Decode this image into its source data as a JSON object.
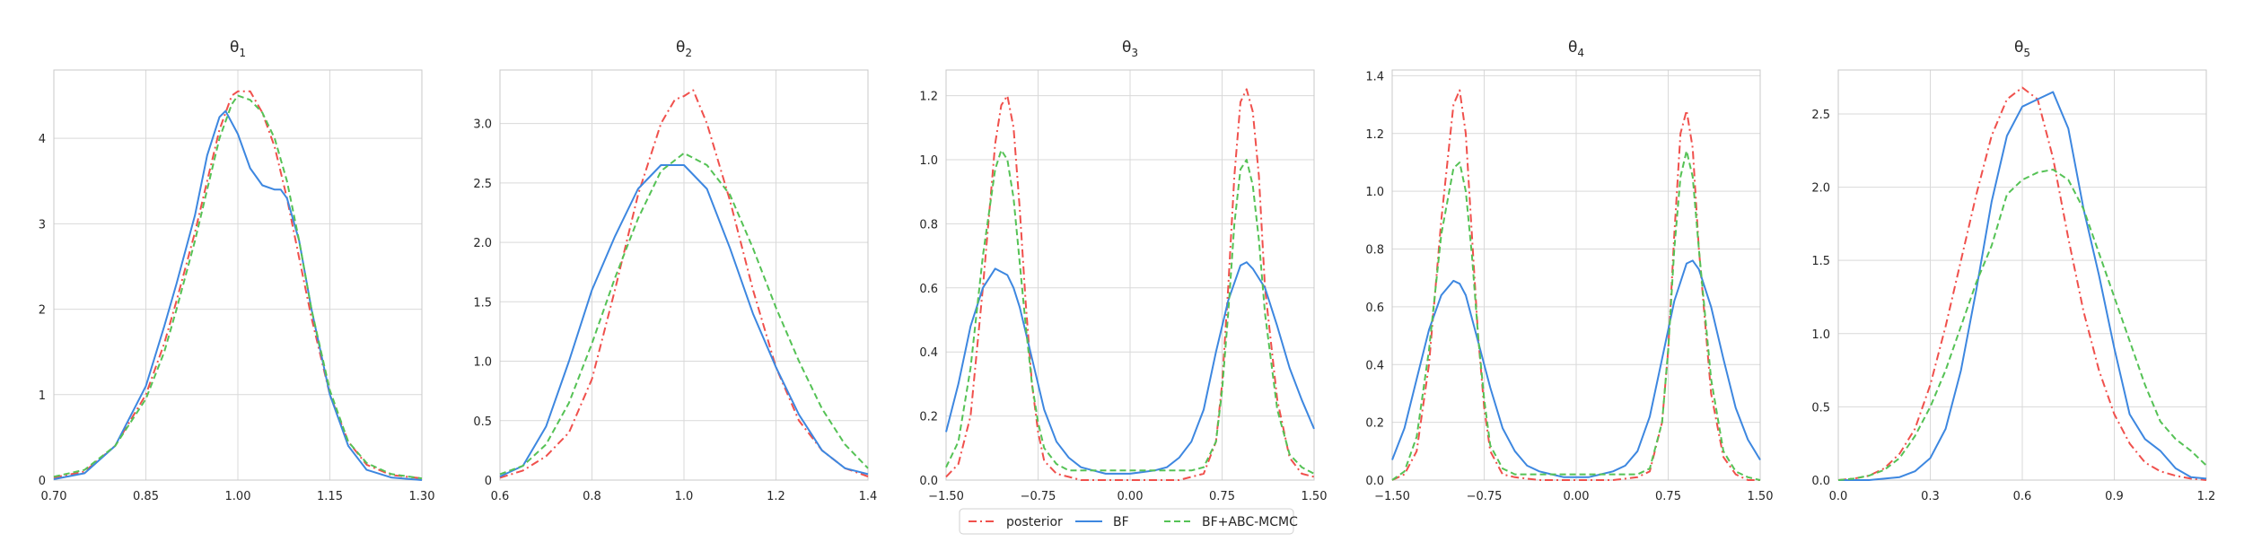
{
  "legend": [
    {
      "label": "posterior",
      "color": "#f0504c",
      "dash": "dashdot"
    },
    {
      "label": "BF",
      "color": "#3d87e0",
      "dash": "solid"
    },
    {
      "label": "BF+ABC-MCMC",
      "color": "#55c255",
      "dash": "dashed"
    }
  ],
  "chart_data": [
    {
      "type": "line",
      "title_base": "θ",
      "title_sub": "1",
      "xlim": [
        0.7,
        1.3
      ],
      "ylim": [
        0,
        4.8
      ],
      "xticks": [
        0.7,
        0.85,
        1.0,
        1.15,
        1.3
      ],
      "xtick_labels": [
        "0.70",
        "0.85",
        "1.00",
        "1.15",
        "1.30"
      ],
      "yticks": [
        0,
        1,
        2,
        3,
        4
      ],
      "ytick_labels": [
        "0",
        "1",
        "2",
        "3",
        "4"
      ],
      "series": [
        {
          "name": "posterior",
          "x": [
            0.7,
            0.75,
            0.8,
            0.85,
            0.88,
            0.9,
            0.93,
            0.95,
            0.97,
            0.99,
            1.0,
            1.02,
            1.04,
            1.06,
            1.08,
            1.1,
            1.12,
            1.15,
            1.18,
            1.21,
            1.25,
            1.3
          ],
          "y": [
            0.03,
            0.1,
            0.4,
            1.0,
            1.6,
            2.1,
            2.9,
            3.5,
            4.1,
            4.5,
            4.55,
            4.55,
            4.3,
            3.9,
            3.3,
            2.6,
            1.9,
            1.0,
            0.45,
            0.18,
            0.06,
            0.02
          ]
        },
        {
          "name": "BF",
          "x": [
            0.7,
            0.75,
            0.8,
            0.85,
            0.88,
            0.9,
            0.93,
            0.95,
            0.97,
            0.98,
            1.0,
            1.02,
            1.04,
            1.06,
            1.07,
            1.08,
            1.1,
            1.12,
            1.15,
            1.18,
            1.21,
            1.25,
            1.3
          ],
          "y": [
            0.01,
            0.08,
            0.4,
            1.1,
            1.8,
            2.3,
            3.1,
            3.8,
            4.25,
            4.32,
            4.05,
            3.65,
            3.45,
            3.4,
            3.4,
            3.3,
            2.8,
            2.0,
            1.0,
            0.4,
            0.12,
            0.03,
            0.0
          ]
        },
        {
          "name": "BF+ABC-MCMC",
          "x": [
            0.7,
            0.75,
            0.8,
            0.85,
            0.88,
            0.9,
            0.93,
            0.95,
            0.97,
            0.99,
            1.0,
            1.02,
            1.04,
            1.06,
            1.08,
            1.1,
            1.12,
            1.15,
            1.18,
            1.21,
            1.25,
            1.3
          ],
          "y": [
            0.04,
            0.12,
            0.4,
            0.95,
            1.5,
            2.0,
            2.8,
            3.4,
            4.0,
            4.4,
            4.5,
            4.45,
            4.3,
            4.0,
            3.5,
            2.8,
            2.0,
            1.05,
            0.45,
            0.2,
            0.07,
            0.02
          ]
        }
      ]
    },
    {
      "type": "line",
      "title_base": "θ",
      "title_sub": "2",
      "xlim": [
        0.6,
        1.4
      ],
      "ylim": [
        0,
        3.45
      ],
      "xticks": [
        0.6,
        0.8,
        1.0,
        1.2,
        1.4
      ],
      "xtick_labels": [
        "0.6",
        "0.8",
        "1.0",
        "1.2",
        "1.4"
      ],
      "yticks": [
        0,
        0.5,
        1.0,
        1.5,
        2.0,
        2.5,
        3.0
      ],
      "ytick_labels": [
        "0",
        "0.5",
        "1.0",
        "1.5",
        "2.0",
        "2.5",
        "3.0"
      ],
      "series": [
        {
          "name": "posterior",
          "x": [
            0.6,
            0.65,
            0.7,
            0.75,
            0.8,
            0.85,
            0.9,
            0.95,
            0.98,
            1.0,
            1.02,
            1.05,
            1.1,
            1.15,
            1.2,
            1.25,
            1.3,
            1.35,
            1.4
          ],
          "y": [
            0.02,
            0.08,
            0.2,
            0.4,
            0.85,
            1.6,
            2.4,
            3.0,
            3.2,
            3.23,
            3.28,
            3.0,
            2.35,
            1.6,
            0.95,
            0.5,
            0.25,
            0.1,
            0.03
          ]
        },
        {
          "name": "BF",
          "x": [
            0.6,
            0.65,
            0.7,
            0.75,
            0.8,
            0.85,
            0.9,
            0.95,
            1.0,
            1.05,
            1.1,
            1.15,
            1.2,
            1.25,
            1.3,
            1.35,
            1.4
          ],
          "y": [
            0.03,
            0.12,
            0.45,
            1.0,
            1.6,
            2.05,
            2.45,
            2.65,
            2.65,
            2.45,
            1.95,
            1.4,
            0.95,
            0.55,
            0.25,
            0.1,
            0.05
          ]
        },
        {
          "name": "BF+ABC-MCMC",
          "x": [
            0.6,
            0.65,
            0.7,
            0.75,
            0.8,
            0.85,
            0.9,
            0.95,
            1.0,
            1.05,
            1.1,
            1.15,
            1.2,
            1.25,
            1.3,
            1.35,
            1.4
          ],
          "y": [
            0.05,
            0.12,
            0.3,
            0.65,
            1.15,
            1.7,
            2.2,
            2.6,
            2.75,
            2.65,
            2.4,
            1.95,
            1.45,
            1.0,
            0.6,
            0.3,
            0.1
          ]
        }
      ]
    },
    {
      "type": "line",
      "title_base": "θ",
      "title_sub": "3",
      "xlim": [
        -1.5,
        1.5
      ],
      "ylim": [
        0,
        1.28
      ],
      "xticks": [
        -1.5,
        -0.75,
        0.0,
        0.75,
        1.5
      ],
      "xtick_labels": [
        "−1.50",
        "−0.75",
        "0.00",
        "0.75",
        "1.50"
      ],
      "yticks": [
        0,
        0.2,
        0.4,
        0.6,
        0.8,
        1.0,
        1.2
      ],
      "ytick_labels": [
        "0.0",
        "0.2",
        "0.4",
        "0.6",
        "0.8",
        "1.0",
        "1.2"
      ],
      "series": [
        {
          "name": "posterior",
          "x": [
            -1.5,
            -1.4,
            -1.3,
            -1.2,
            -1.1,
            -1.05,
            -1.0,
            -0.95,
            -0.9,
            -0.85,
            -0.8,
            -0.75,
            -0.7,
            -0.6,
            -0.5,
            -0.4,
            -0.2,
            0.0,
            0.2,
            0.4,
            0.5,
            0.6,
            0.7,
            0.75,
            0.8,
            0.85,
            0.9,
            0.95,
            1.0,
            1.05,
            1.1,
            1.2,
            1.3,
            1.4,
            1.5
          ],
          "y": [
            0.01,
            0.05,
            0.2,
            0.6,
            1.05,
            1.17,
            1.2,
            1.1,
            0.85,
            0.55,
            0.3,
            0.15,
            0.06,
            0.02,
            0.01,
            0.0,
            0.0,
            0.0,
            0.0,
            0.0,
            0.01,
            0.02,
            0.12,
            0.3,
            0.6,
            0.95,
            1.18,
            1.22,
            1.15,
            0.95,
            0.6,
            0.25,
            0.07,
            0.02,
            0.01
          ]
        },
        {
          "name": "BF",
          "x": [
            -1.5,
            -1.4,
            -1.3,
            -1.2,
            -1.1,
            -1.0,
            -0.95,
            -0.9,
            -0.8,
            -0.7,
            -0.6,
            -0.5,
            -0.4,
            -0.3,
            -0.2,
            0.0,
            0.2,
            0.3,
            0.4,
            0.5,
            0.6,
            0.7,
            0.8,
            0.9,
            0.95,
            1.0,
            1.1,
            1.2,
            1.3,
            1.4,
            1.5
          ],
          "y": [
            0.15,
            0.3,
            0.48,
            0.6,
            0.66,
            0.64,
            0.6,
            0.54,
            0.38,
            0.22,
            0.12,
            0.07,
            0.04,
            0.03,
            0.02,
            0.02,
            0.03,
            0.04,
            0.07,
            0.12,
            0.22,
            0.4,
            0.56,
            0.67,
            0.68,
            0.66,
            0.6,
            0.48,
            0.35,
            0.25,
            0.16
          ]
        },
        {
          "name": "BF+ABC-MCMC",
          "x": [
            -1.5,
            -1.4,
            -1.3,
            -1.2,
            -1.1,
            -1.05,
            -1.0,
            -0.95,
            -0.9,
            -0.85,
            -0.8,
            -0.75,
            -0.7,
            -0.6,
            -0.5,
            -0.4,
            -0.2,
            0.0,
            0.2,
            0.4,
            0.5,
            0.6,
            0.7,
            0.75,
            0.8,
            0.85,
            0.9,
            0.95,
            1.0,
            1.05,
            1.1,
            1.2,
            1.3,
            1.4,
            1.5
          ],
          "y": [
            0.04,
            0.12,
            0.35,
            0.7,
            0.97,
            1.03,
            1.0,
            0.88,
            0.68,
            0.48,
            0.3,
            0.18,
            0.1,
            0.05,
            0.03,
            0.03,
            0.03,
            0.03,
            0.03,
            0.03,
            0.03,
            0.04,
            0.12,
            0.28,
            0.52,
            0.8,
            0.97,
            1.0,
            0.92,
            0.75,
            0.52,
            0.22,
            0.08,
            0.04,
            0.02
          ]
        }
      ]
    },
    {
      "type": "line",
      "title_base": "θ",
      "title_sub": "4",
      "xlim": [
        -1.5,
        1.5
      ],
      "ylim": [
        0,
        1.42
      ],
      "xticks": [
        -1.5,
        -0.75,
        0.0,
        0.75,
        1.5
      ],
      "xtick_labels": [
        "−1.50",
        "−0.75",
        "0.00",
        "0.75",
        "1.50"
      ],
      "yticks": [
        0,
        0.2,
        0.4,
        0.6,
        0.8,
        1.0,
        1.2,
        1.4
      ],
      "ytick_labels": [
        "0.0",
        "0.2",
        "0.4",
        "0.6",
        "0.8",
        "1.0",
        "1.2",
        "1.4"
      ],
      "series": [
        {
          "name": "posterior",
          "x": [
            -1.5,
            -1.4,
            -1.3,
            -1.2,
            -1.1,
            -1.0,
            -0.95,
            -0.9,
            -0.85,
            -0.8,
            -0.75,
            -0.7,
            -0.6,
            -0.5,
            -0.3,
            0.0,
            0.3,
            0.5,
            0.6,
            0.7,
            0.75,
            0.8,
            0.85,
            0.9,
            0.95,
            1.0,
            1.1,
            1.2,
            1.3,
            1.4,
            1.5
          ],
          "y": [
            0.0,
            0.02,
            0.1,
            0.4,
            0.9,
            1.3,
            1.35,
            1.2,
            0.85,
            0.5,
            0.25,
            0.1,
            0.02,
            0.01,
            0.0,
            0.0,
            0.0,
            0.01,
            0.03,
            0.2,
            0.45,
            0.85,
            1.2,
            1.28,
            1.15,
            0.8,
            0.3,
            0.08,
            0.02,
            0.0,
            0.0
          ]
        },
        {
          "name": "BF",
          "x": [
            -1.5,
            -1.4,
            -1.3,
            -1.2,
            -1.1,
            -1.0,
            -0.95,
            -0.9,
            -0.8,
            -0.7,
            -0.6,
            -0.5,
            -0.4,
            -0.3,
            -0.2,
            -0.1,
            0.0,
            0.1,
            0.2,
            0.3,
            0.4,
            0.5,
            0.6,
            0.7,
            0.8,
            0.9,
            0.95,
            1.0,
            1.1,
            1.2,
            1.3,
            1.4,
            1.5
          ],
          "y": [
            0.07,
            0.18,
            0.35,
            0.52,
            0.64,
            0.69,
            0.68,
            0.64,
            0.48,
            0.32,
            0.18,
            0.1,
            0.05,
            0.03,
            0.02,
            0.01,
            0.01,
            0.01,
            0.02,
            0.03,
            0.05,
            0.1,
            0.22,
            0.42,
            0.62,
            0.75,
            0.76,
            0.73,
            0.6,
            0.42,
            0.25,
            0.14,
            0.07
          ]
        },
        {
          "name": "BF+ABC-MCMC",
          "x": [
            -1.5,
            -1.4,
            -1.3,
            -1.2,
            -1.1,
            -1.0,
            -0.95,
            -0.9,
            -0.85,
            -0.8,
            -0.75,
            -0.7,
            -0.6,
            -0.5,
            -0.3,
            0.0,
            0.3,
            0.5,
            0.6,
            0.7,
            0.75,
            0.8,
            0.85,
            0.9,
            0.95,
            1.0,
            1.1,
            1.2,
            1.3,
            1.4,
            1.5
          ],
          "y": [
            0.0,
            0.03,
            0.15,
            0.45,
            0.85,
            1.08,
            1.1,
            1.0,
            0.78,
            0.5,
            0.28,
            0.12,
            0.04,
            0.02,
            0.02,
            0.02,
            0.02,
            0.02,
            0.04,
            0.2,
            0.45,
            0.8,
            1.05,
            1.14,
            1.05,
            0.8,
            0.35,
            0.1,
            0.03,
            0.01,
            0.0
          ]
        }
      ]
    },
    {
      "type": "line",
      "title_base": "θ",
      "title_sub": "5",
      "xlim": [
        0.0,
        1.2
      ],
      "ylim": [
        0,
        2.8
      ],
      "xticks": [
        0.0,
        0.3,
        0.6,
        0.9,
        1.2
      ],
      "xtick_labels": [
        "0.0",
        "0.3",
        "0.6",
        "0.9",
        "1.2"
      ],
      "yticks": [
        0,
        0.5,
        1.0,
        1.5,
        2.0,
        2.5
      ],
      "ytick_labels": [
        "0.0",
        "0.5",
        "1.0",
        "1.5",
        "2.0",
        "2.5"
      ],
      "series": [
        {
          "name": "posterior",
          "x": [
            0.0,
            0.05,
            0.1,
            0.15,
            0.2,
            0.25,
            0.3,
            0.35,
            0.4,
            0.45,
            0.5,
            0.55,
            0.6,
            0.65,
            0.7,
            0.75,
            0.8,
            0.85,
            0.9,
            0.95,
            1.0,
            1.05,
            1.1,
            1.15,
            1.2
          ],
          "y": [
            0.0,
            0.01,
            0.03,
            0.08,
            0.18,
            0.35,
            0.65,
            1.05,
            1.5,
            1.95,
            2.35,
            2.6,
            2.68,
            2.6,
            2.2,
            1.65,
            1.15,
            0.75,
            0.45,
            0.25,
            0.12,
            0.06,
            0.03,
            0.01,
            0.0
          ]
        },
        {
          "name": "BF",
          "x": [
            0.0,
            0.1,
            0.2,
            0.25,
            0.3,
            0.35,
            0.4,
            0.45,
            0.5,
            0.55,
            0.6,
            0.65,
            0.7,
            0.75,
            0.8,
            0.85,
            0.9,
            0.95,
            1.0,
            1.05,
            1.1,
            1.15,
            1.2
          ],
          "y": [
            0.0,
            0.0,
            0.02,
            0.06,
            0.15,
            0.35,
            0.75,
            1.3,
            1.9,
            2.35,
            2.55,
            2.6,
            2.65,
            2.4,
            1.85,
            1.4,
            0.9,
            0.45,
            0.28,
            0.2,
            0.08,
            0.02,
            0.01
          ]
        },
        {
          "name": "BF+ABC-MCMC",
          "x": [
            0.0,
            0.05,
            0.1,
            0.15,
            0.2,
            0.25,
            0.3,
            0.35,
            0.4,
            0.45,
            0.5,
            0.55,
            0.6,
            0.65,
            0.7,
            0.75,
            0.8,
            0.85,
            0.9,
            0.95,
            1.0,
            1.05,
            1.1,
            1.15,
            1.2
          ],
          "y": [
            0.0,
            0.01,
            0.03,
            0.07,
            0.15,
            0.3,
            0.5,
            0.75,
            1.05,
            1.35,
            1.6,
            1.95,
            2.05,
            2.1,
            2.12,
            2.05,
            1.85,
            1.55,
            1.25,
            0.95,
            0.65,
            0.4,
            0.28,
            0.2,
            0.1
          ]
        }
      ]
    }
  ]
}
